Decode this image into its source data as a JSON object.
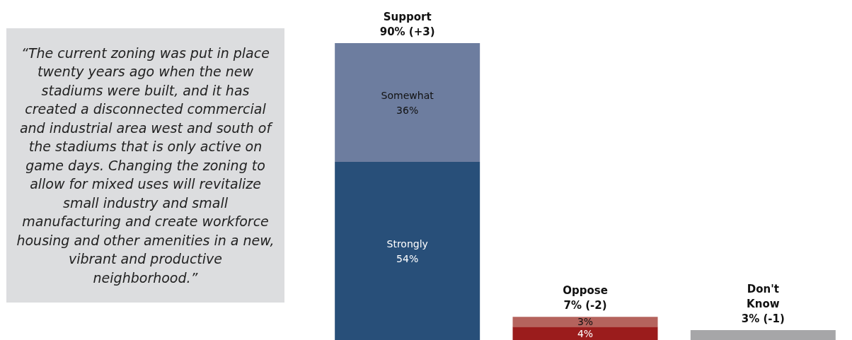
{
  "chart_data": {
    "type": "bar",
    "stacked": true,
    "categories": [
      "Support",
      "Oppose",
      "Don't\nKnow"
    ],
    "totals": [
      "90% (+3)",
      "7% (-2)",
      "3% (-1)"
    ],
    "ylim": [
      0,
      90
    ],
    "tick_labels": false,
    "series": [
      {
        "colors": [
          "#284f79",
          "#9b1c1c",
          null
        ],
        "values": [
          54,
          4,
          null
        ],
        "value_labels": [
          "Strongly\n54%",
          "4%",
          null
        ]
      },
      {
        "colors": [
          "#6d7d9f",
          "#b5635d",
          null
        ],
        "values": [
          36,
          3,
          null
        ],
        "value_labels": [
          "Somewhat\n36%",
          "3%",
          null
        ]
      },
      {
        "color": "#a6a6a8",
        "values": [
          null,
          null,
          3
        ]
      }
    ],
    "annotations": [
      "“The current zoning was put in place twenty years ago when the new stadiums were built, and it has created a disconnected commercial and industrial area west and south of the stadiums that is only active on game days. Changing the zoning to allow for mixed uses will revitalize small industry and small manufacturing and create workforce housing and other amenities in a new, vibrant and productive neighborhood.”"
    ]
  }
}
